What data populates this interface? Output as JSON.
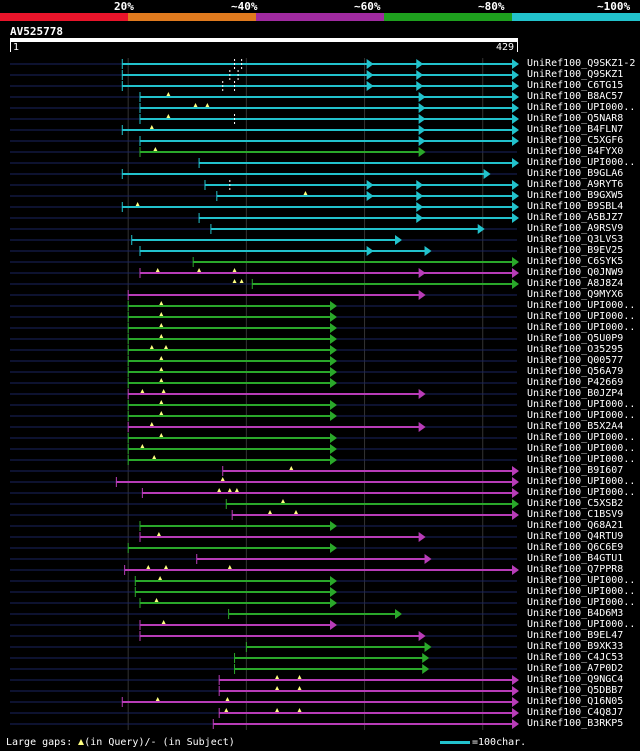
{
  "scale": {
    "labels": [
      "20%",
      "~40%",
      "~60%",
      "~80%",
      "~100%"
    ],
    "colors": [
      "#e8142a",
      "#e07a1e",
      "#a02aa0",
      "#1ea01e",
      "#22c2cc"
    ]
  },
  "query": {
    "name": "AV525778",
    "start": "1",
    "end": "429",
    "length": 429
  },
  "colors": {
    "cyan": "#22c2cc",
    "green": "#2aa82a",
    "magenta": "#b83cb8",
    "line": "#1a2460",
    "insert": "#ffff80",
    "grid": "#333333"
  },
  "hits": [
    {
      "name": "UniRef100_Q9SKZ1-2",
      "start": 95,
      "end": 429,
      "color": "cyan",
      "dashed": [
        190,
        196
      ],
      "inserts": [],
      "arrows": [
        306,
        348,
        429
      ]
    },
    {
      "name": "UniRef100_Q9SKZ1",
      "start": 95,
      "end": 429,
      "color": "cyan",
      "dashed": [
        186,
        193
      ],
      "inserts": [],
      "arrows": [
        306,
        348,
        429
      ]
    },
    {
      "name": "UniRef100_C6TG15",
      "start": 95,
      "end": 429,
      "color": "cyan",
      "dashed": [
        180,
        190
      ],
      "inserts": [],
      "arrows": [
        306,
        348,
        429
      ]
    },
    {
      "name": "UniRef100_B8AC57",
      "start": 110,
      "end": 429,
      "color": "cyan",
      "dashed": [],
      "inserts": [
        134
      ],
      "arrows": [
        350,
        429
      ]
    },
    {
      "name": "UniRef100_UPI000..",
      "start": 110,
      "end": 429,
      "color": "cyan",
      "dashed": [],
      "inserts": [
        157,
        167
      ],
      "arrows": [
        350,
        429
      ]
    },
    {
      "name": "UniRef100_Q5NAR8",
      "start": 110,
      "end": 429,
      "color": "cyan",
      "dashed": [
        190
      ],
      "inserts": [
        134
      ],
      "arrows": [
        350,
        429
      ]
    },
    {
      "name": "UniRef100_B4FLN7",
      "start": 95,
      "end": 429,
      "color": "cyan",
      "dashed": [],
      "inserts": [
        120
      ],
      "arrows": [
        350,
        429
      ]
    },
    {
      "name": "UniRef100_C5XGF6",
      "start": 110,
      "end": 429,
      "color": "cyan",
      "dashed": [],
      "inserts": [],
      "arrows": [
        350,
        429
      ]
    },
    {
      "name": "UniRef100_B4FYX0",
      "start": 110,
      "end": 350,
      "color": "green",
      "dashed": [],
      "inserts": [
        123
      ],
      "arrows": [
        350
      ]
    },
    {
      "name": "UniRef100_UPI000..",
      "start": 160,
      "end": 429,
      "color": "cyan",
      "dashed": [],
      "inserts": [],
      "arrows": [
        429
      ]
    },
    {
      "name": "UniRef100_B9GLA6",
      "start": 95,
      "end": 405,
      "color": "cyan",
      "dashed": [],
      "inserts": [],
      "arrows": [
        405
      ]
    },
    {
      "name": "UniRef100_A9RYT6",
      "start": 165,
      "end": 429,
      "color": "cyan",
      "dashed": [
        186
      ],
      "inserts": [],
      "arrows": [
        306,
        348,
        429
      ]
    },
    {
      "name": "UniRef100_B9GXW5",
      "start": 175,
      "end": 429,
      "color": "cyan",
      "dashed": [],
      "inserts": [
        250
      ],
      "arrows": [
        306,
        348,
        429
      ]
    },
    {
      "name": "UniRef100_B9SBL4",
      "start": 95,
      "end": 429,
      "color": "cyan",
      "dashed": [],
      "inserts": [
        108
      ],
      "arrows": [
        348,
        429
      ]
    },
    {
      "name": "UniRef100_A5BJZ7",
      "start": 160,
      "end": 429,
      "color": "cyan",
      "dashed": [],
      "inserts": [],
      "arrows": [
        348,
        429
      ]
    },
    {
      "name": "UniRef100_A9RSV9",
      "start": 170,
      "end": 400,
      "color": "cyan",
      "dashed": [],
      "inserts": [],
      "arrows": [
        400
      ]
    },
    {
      "name": "UniRef100_Q3LVS3",
      "start": 103,
      "end": 330,
      "color": "cyan",
      "dashed": [],
      "inserts": [],
      "arrows": [
        330
      ]
    },
    {
      "name": "UniRef100_B9EV25",
      "start": 110,
      "end": 355,
      "color": "cyan",
      "dashed": [],
      "inserts": [],
      "arrows": [
        306,
        355
      ]
    },
    {
      "name": "UniRef100_C6SYK5",
      "start": 155,
      "end": 429,
      "color": "green",
      "dashed": [],
      "inserts": [],
      "arrows": [
        429
      ]
    },
    {
      "name": "UniRef100_Q0JNW9",
      "start": 110,
      "end": 429,
      "color": "magenta",
      "dashed": [],
      "inserts": [
        125,
        160,
        190
      ],
      "arrows": [
        350,
        429
      ]
    },
    {
      "name": "UniRef100_A8J8Z4",
      "start": 205,
      "end": 429,
      "color": "green",
      "dashed": [],
      "inserts": [
        190,
        196
      ],
      "arrows": [
        429
      ]
    },
    {
      "name": "UniRef100_Q9MYX6",
      "start": 100,
      "end": 350,
      "color": "magenta",
      "dashed": [],
      "inserts": [],
      "arrows": [
        350
      ]
    },
    {
      "name": "UniRef100_UPI000..",
      "start": 100,
      "end": 275,
      "color": "green",
      "dashed": [],
      "inserts": [
        128
      ],
      "arrows": [
        275
      ]
    },
    {
      "name": "UniRef100_UPI000..",
      "start": 100,
      "end": 275,
      "color": "green",
      "dashed": [],
      "inserts": [
        128
      ],
      "arrows": [
        275
      ]
    },
    {
      "name": "UniRef100_UPI000..",
      "start": 100,
      "end": 275,
      "color": "green",
      "dashed": [],
      "inserts": [
        128
      ],
      "arrows": [
        275
      ]
    },
    {
      "name": "UniRef100_Q5U0P9",
      "start": 100,
      "end": 275,
      "color": "green",
      "dashed": [],
      "inserts": [
        128
      ],
      "arrows": [
        275
      ]
    },
    {
      "name": "UniRef100_O35295",
      "start": 100,
      "end": 275,
      "color": "green",
      "dashed": [],
      "inserts": [
        120,
        132
      ],
      "arrows": [
        275
      ]
    },
    {
      "name": "UniRef100_Q00577",
      "start": 100,
      "end": 275,
      "color": "green",
      "dashed": [],
      "inserts": [
        128
      ],
      "arrows": [
        275
      ]
    },
    {
      "name": "UniRef100_Q56A79",
      "start": 100,
      "end": 275,
      "color": "green",
      "dashed": [],
      "inserts": [
        128
      ],
      "arrows": [
        275
      ]
    },
    {
      "name": "UniRef100_P42669",
      "start": 100,
      "end": 275,
      "color": "green",
      "dashed": [],
      "inserts": [
        128
      ],
      "arrows": [
        275
      ]
    },
    {
      "name": "UniRef100_B0JZP4",
      "start": 100,
      "end": 350,
      "color": "magenta",
      "dashed": [],
      "inserts": [
        112,
        130
      ],
      "arrows": [
        350
      ]
    },
    {
      "name": "UniRef100_UPI000..",
      "start": 100,
      "end": 275,
      "color": "green",
      "dashed": [],
      "inserts": [
        128
      ],
      "arrows": [
        275
      ]
    },
    {
      "name": "UniRef100_UPI000..",
      "start": 100,
      "end": 275,
      "color": "green",
      "dashed": [],
      "inserts": [
        128
      ],
      "arrows": [
        275
      ]
    },
    {
      "name": "UniRef100_B5X2A4",
      "start": 100,
      "end": 350,
      "color": "magenta",
      "dashed": [],
      "inserts": [
        120
      ],
      "arrows": [
        350
      ]
    },
    {
      "name": "UniRef100_UPI000..",
      "start": 100,
      "end": 275,
      "color": "green",
      "dashed": [],
      "inserts": [
        128
      ],
      "arrows": [
        275
      ]
    },
    {
      "name": "UniRef100_UPI000..",
      "start": 100,
      "end": 275,
      "color": "green",
      "dashed": [],
      "inserts": [
        112
      ],
      "arrows": [
        275
      ]
    },
    {
      "name": "UniRef100_UPI000..",
      "start": 100,
      "end": 275,
      "color": "green",
      "dashed": [],
      "inserts": [
        122
      ],
      "arrows": [
        275
      ]
    },
    {
      "name": "UniRef100_B9I607",
      "start": 180,
      "end": 429,
      "color": "magenta",
      "dashed": [],
      "inserts": [
        238
      ],
      "arrows": [
        429
      ]
    },
    {
      "name": "UniRef100_UPI000..",
      "start": 90,
      "end": 429,
      "color": "magenta",
      "dashed": [],
      "inserts": [
        180
      ],
      "arrows": [
        429
      ]
    },
    {
      "name": "UniRef100_UPI000..",
      "start": 112,
      "end": 429,
      "color": "magenta",
      "dashed": [],
      "inserts": [
        177,
        186,
        192
      ],
      "arrows": [
        429
      ]
    },
    {
      "name": "UniRef100_C5XSB2",
      "start": 183,
      "end": 429,
      "color": "green",
      "dashed": [],
      "inserts": [
        231
      ],
      "arrows": [
        429
      ]
    },
    {
      "name": "UniRef100_C1BSV9",
      "start": 188,
      "end": 429,
      "color": "magenta",
      "dashed": [],
      "inserts": [
        220,
        242
      ],
      "arrows": [
        429
      ]
    },
    {
      "name": "UniRef100_Q68A21",
      "start": 110,
      "end": 275,
      "color": "green",
      "dashed": [],
      "inserts": [],
      "arrows": [
        275
      ]
    },
    {
      "name": "UniRef100_Q4RTU9",
      "start": 110,
      "end": 350,
      "color": "magenta",
      "dashed": [],
      "inserts": [
        126
      ],
      "arrows": [
        350
      ]
    },
    {
      "name": "UniRef100_Q6C6E9",
      "start": 100,
      "end": 275,
      "color": "green",
      "dashed": [],
      "inserts": [],
      "arrows": [
        275
      ]
    },
    {
      "name": "UniRef100_B4GTU1",
      "start": 158,
      "end": 355,
      "color": "magenta",
      "dashed": [],
      "inserts": [],
      "arrows": [
        355
      ]
    },
    {
      "name": "UniRef100_Q7PPR8",
      "start": 97,
      "end": 429,
      "color": "magenta",
      "dashed": [],
      "inserts": [
        117,
        132,
        186
      ],
      "arrows": [
        429
      ]
    },
    {
      "name": "UniRef100_UPI000..",
      "start": 106,
      "end": 275,
      "color": "green",
      "dashed": [],
      "inserts": [
        127
      ],
      "arrows": [
        275
      ]
    },
    {
      "name": "UniRef100_UPI000..",
      "start": 106,
      "end": 275,
      "color": "green",
      "dashed": [],
      "inserts": [],
      "arrows": [
        275
      ]
    },
    {
      "name": "UniRef100_UPI000..",
      "start": 110,
      "end": 275,
      "color": "green",
      "dashed": [],
      "inserts": [
        124
      ],
      "arrows": [
        275
      ]
    },
    {
      "name": "UniRef100_B4D6M3",
      "start": 185,
      "end": 330,
      "color": "green",
      "dashed": [],
      "inserts": [],
      "arrows": [
        330
      ]
    },
    {
      "name": "UniRef100_UPI000..",
      "start": 110,
      "end": 275,
      "color": "magenta",
      "dashed": [],
      "inserts": [
        130
      ],
      "arrows": [
        275
      ]
    },
    {
      "name": "UniRef100_B9EL47",
      "start": 110,
      "end": 350,
      "color": "magenta",
      "dashed": [],
      "inserts": [],
      "arrows": [
        350
      ]
    },
    {
      "name": "UniRef100_B9XK33",
      "start": 200,
      "end": 355,
      "color": "green",
      "dashed": [],
      "inserts": [],
      "arrows": [
        355
      ]
    },
    {
      "name": "UniRef100_C4JC53",
      "start": 190,
      "end": 353,
      "color": "green",
      "dashed": [],
      "inserts": [],
      "arrows": [
        353
      ]
    },
    {
      "name": "UniRef100_A7P0D2",
      "start": 190,
      "end": 353,
      "color": "green",
      "dashed": [],
      "inserts": [],
      "arrows": [
        353
      ]
    },
    {
      "name": "UniRef100_Q9NGC4",
      "start": 177,
      "end": 429,
      "color": "magenta",
      "dashed": [],
      "inserts": [
        226,
        245
      ],
      "arrows": [
        429
      ]
    },
    {
      "name": "UniRef100_Q5DBB7",
      "start": 177,
      "end": 429,
      "color": "magenta",
      "dashed": [],
      "inserts": [
        226,
        245
      ],
      "arrows": [
        429
      ]
    },
    {
      "name": "UniRef100_Q16N05",
      "start": 95,
      "end": 429,
      "color": "magenta",
      "dashed": [],
      "inserts": [
        125,
        184
      ],
      "arrows": [
        429
      ]
    },
    {
      "name": "UniRef100_C4Q8J7",
      "start": 177,
      "end": 429,
      "color": "magenta",
      "dashed": [],
      "inserts": [
        183,
        226,
        245
      ],
      "arrows": [
        429
      ]
    },
    {
      "name": "UniRef100_B3RKP5",
      "start": 172,
      "end": 429,
      "color": "magenta",
      "dashed": [],
      "inserts": [],
      "arrows": [
        429
      ]
    }
  ],
  "footer": {
    "label": "Large gaps:",
    "query_text": "(in Query)/",
    "subject_text": "- (in Subject)"
  },
  "legend": {
    "text": "=100char."
  }
}
